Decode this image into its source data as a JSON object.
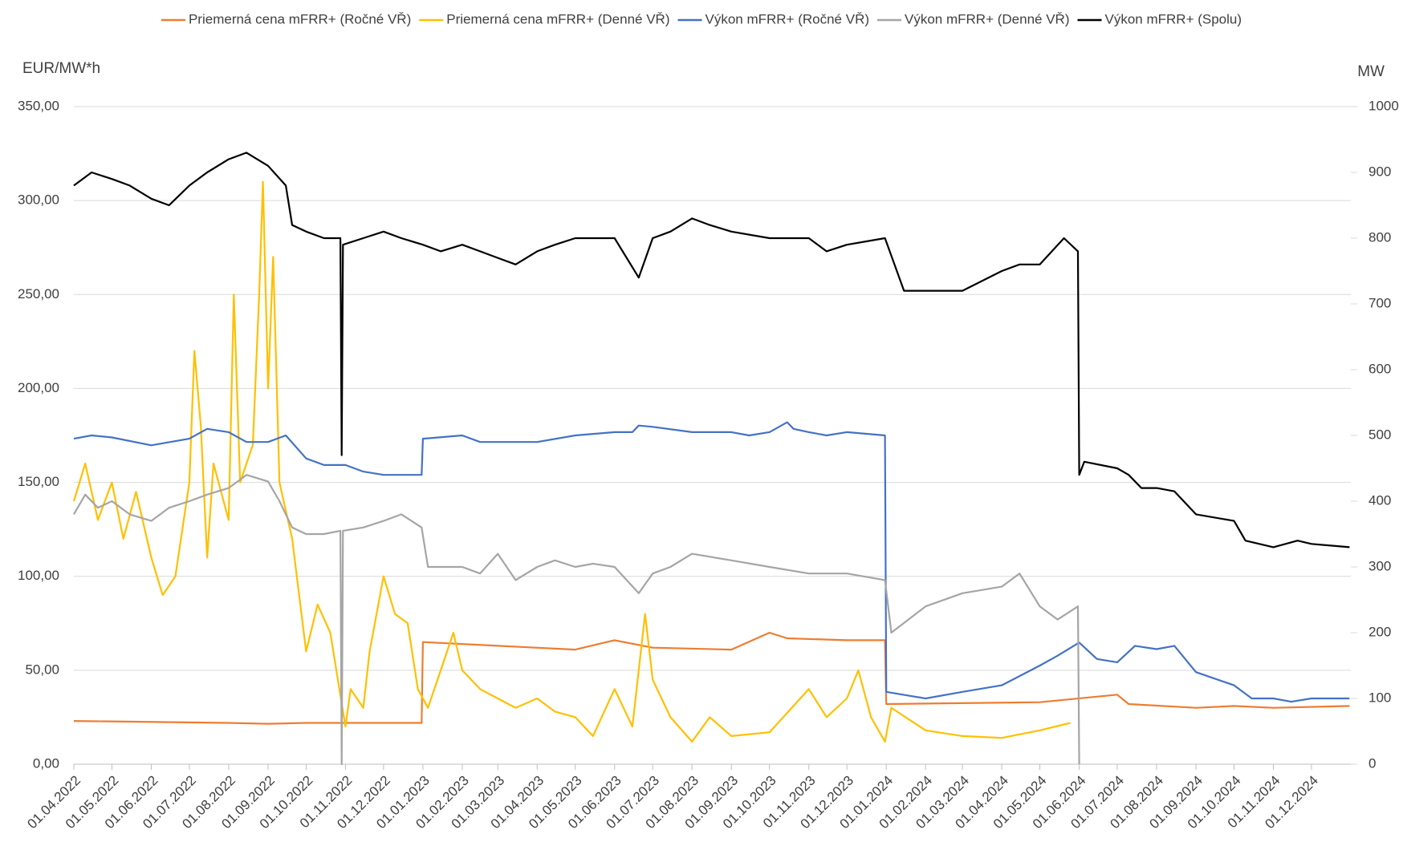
{
  "chart_data": {
    "type": "line",
    "y_label": "EUR/MW*h",
    "y2_label": "MW",
    "xlim": [
      "01.04.2022",
      "01.01.2025"
    ],
    "xticks": [
      "01.04.2022",
      "01.05.2022",
      "01.06.2022",
      "01.07.2022",
      "01.08.2022",
      "01.09.2022",
      "01.10.2022",
      "01.11.2022",
      "01.12.2022",
      "01.01.2023",
      "01.02.2023",
      "01.03.2023",
      "01.04.2023",
      "01.05.2023",
      "01.06.2023",
      "01.07.2023",
      "01.08.2023",
      "01.09.2023",
      "01.10.2023",
      "01.11.2023",
      "01.12.2023",
      "01.01.2024",
      "01.02.2024",
      "01.03.2024",
      "01.04.2024",
      "01.05.2024",
      "01.06.2024",
      "01.07.2024",
      "01.08.2024",
      "01.09.2024",
      "01.10.2024",
      "01.11.2024",
      "01.12.2024"
    ],
    "ylim": [
      0,
      350
    ],
    "yticks": [
      {
        "value": 0,
        "label": "0,00"
      },
      {
        "value": 50,
        "label": "50,00"
      },
      {
        "value": 100,
        "label": "100,00"
      },
      {
        "value": 150,
        "label": "150,00"
      },
      {
        "value": 200,
        "label": "200,00"
      },
      {
        "value": 250,
        "label": "250,00"
      },
      {
        "value": 300,
        "label": "300,00"
      },
      {
        "value": 350,
        "label": "350,00"
      }
    ],
    "y2lim": [
      0,
      1000
    ],
    "y2ticks": [
      0,
      100,
      200,
      300,
      400,
      500,
      600,
      700,
      800,
      900,
      1000
    ],
    "grid": true,
    "legend": "top",
    "series": [
      {
        "name": "Priemerná cena mFRR+ (Ročné VŘ)",
        "color": "#ed7d31",
        "axis": "y",
        "x": [
          "01.04.2022",
          "01.08.2022",
          "01.09.2022",
          "01.10.2022",
          "31.12.2022",
          "01.01.2023",
          "01.05.2023",
          "01.06.2023",
          "01.07.2023",
          "01.09.2023",
          "01.10.2023",
          "15.10.2023",
          "01.12.2023",
          "31.12.2023",
          "01.01.2024",
          "01.05.2024",
          "01.07.2024",
          "10.07.2024",
          "01.09.2024",
          "01.10.2024",
          "01.11.2024",
          "31.12.2024"
        ],
        "values": [
          23,
          22,
          21.5,
          22,
          22,
          65,
          61,
          66,
          62,
          61,
          70,
          67,
          66,
          66,
          32,
          33,
          37,
          32,
          30,
          31,
          30,
          31
        ]
      },
      {
        "name": "Priemerná cena mFRR+ (Denné VŘ)",
        "color": "#ffc000",
        "axis": "y",
        "x": [
          "01.04.2022",
          "10.04.2022",
          "20.04.2022",
          "01.05.2022",
          "10.05.2022",
          "20.05.2022",
          "01.06.2022",
          "10.06.2022",
          "20.06.2022",
          "01.07.2022",
          "05.07.2022",
          "10.07.2022",
          "15.07.2022",
          "20.07.2022",
          "01.08.2022",
          "05.08.2022",
          "10.08.2022",
          "20.08.2022",
          "25.08.2022",
          "28.08.2022",
          "01.09.2022",
          "05.09.2022",
          "10.09.2022",
          "20.09.2022",
          "01.10.2022",
          "10.10.2022",
          "20.10.2022",
          "01.11.2022",
          "05.11.2022",
          "15.11.2022",
          "20.11.2022",
          "01.12.2022",
          "10.12.2022",
          "20.12.2022",
          "28.12.2022",
          "05.01.2023",
          "15.01.2023",
          "25.01.2023",
          "01.02.2023",
          "15.02.2023",
          "01.03.2023",
          "15.03.2023",
          "01.04.2023",
          "15.04.2023",
          "01.05.2023",
          "15.05.2023",
          "01.06.2023",
          "15.06.2023",
          "25.06.2023",
          "01.07.2023",
          "15.07.2023",
          "01.08.2023",
          "15.08.2023",
          "01.09.2023",
          "01.10.2023",
          "01.11.2023",
          "15.11.2023",
          "01.12.2023",
          "10.12.2023",
          "20.12.2023",
          "31.12.2023",
          "05.01.2024",
          "01.02.2024",
          "01.03.2024",
          "01.04.2024",
          "01.05.2024",
          "25.05.2024"
        ],
        "values": [
          140,
          160,
          130,
          150,
          120,
          145,
          110,
          90,
          100,
          150,
          220,
          180,
          110,
          160,
          130,
          250,
          150,
          170,
          250,
          310,
          200,
          270,
          150,
          120,
          60,
          85,
          70,
          20,
          40,
          30,
          60,
          100,
          80,
          75,
          40,
          30,
          50,
          70,
          50,
          40,
          35,
          30,
          35,
          28,
          25,
          15,
          40,
          20,
          80,
          45,
          25,
          12,
          25,
          15,
          17,
          40,
          25,
          35,
          50,
          25,
          12,
          30,
          18,
          15,
          14,
          18,
          22
        ]
      },
      {
        "name": "Výkon mFRR+ (Ročné VŘ)",
        "color": "#4472c4",
        "axis": "y2",
        "x": [
          "01.04.2022",
          "15.04.2022",
          "01.05.2022",
          "01.06.2022",
          "01.07.2022",
          "15.07.2022",
          "01.08.2022",
          "15.08.2022",
          "01.09.2022",
          "15.09.2022",
          "01.10.2022",
          "15.10.2022",
          "01.11.2022",
          "15.11.2022",
          "01.12.2022",
          "15.12.2022",
          "31.12.2022",
          "01.01.2023",
          "01.02.2023",
          "15.02.2023",
          "01.03.2023",
          "01.04.2023",
          "01.05.2023",
          "01.06.2023",
          "15.06.2023",
          "20.06.2023",
          "01.07.2023",
          "01.08.2023",
          "01.09.2023",
          "15.09.2023",
          "01.10.2023",
          "15.10.2023",
          "20.10.2023",
          "01.11.2023",
          "15.11.2023",
          "01.12.2023",
          "31.12.2023",
          "01.01.2024",
          "01.02.2024",
          "01.03.2024",
          "01.04.2024",
          "01.05.2024",
          "15.05.2024",
          "01.06.2024",
          "15.06.2024",
          "01.07.2024",
          "15.07.2024",
          "01.08.2024",
          "15.08.2024",
          "01.09.2024",
          "01.10.2024",
          "15.10.2024",
          "01.11.2024",
          "15.11.2024",
          "01.12.2024",
          "31.12.2024"
        ],
        "values": [
          495,
          500,
          497,
          485,
          495,
          510,
          505,
          490,
          490,
          500,
          465,
          455,
          455,
          445,
          440,
          440,
          440,
          495,
          500,
          490,
          490,
          490,
          500,
          505,
          505,
          515,
          513,
          505,
          505,
          500,
          505,
          520,
          510,
          505,
          500,
          505,
          500,
          110,
          100,
          110,
          120,
          150,
          165,
          185,
          160,
          155,
          180,
          175,
          180,
          140,
          120,
          100,
          100,
          95,
          100,
          100
        ]
      },
      {
        "name": "Výkon mFRR+ (Denné VŘ)",
        "color": "#a5a5a5",
        "axis": "y2",
        "x": [
          "01.04.2022",
          "10.04.2022",
          "20.04.2022",
          "01.05.2022",
          "15.05.2022",
          "01.06.2022",
          "15.06.2022",
          "01.07.2022",
          "15.07.2022",
          "01.08.2022",
          "15.08.2022",
          "01.09.2022",
          "10.09.2022",
          "20.09.2022",
          "01.10.2022",
          "15.10.2022",
          "28.10.2022",
          "29.10.2022",
          "30.10.2022",
          "15.11.2022",
          "01.12.2022",
          "15.12.2022",
          "31.12.2022",
          "05.01.2023",
          "01.02.2023",
          "15.02.2023",
          "01.03.2023",
          "15.03.2023",
          "01.04.2023",
          "15.04.2023",
          "01.05.2023",
          "15.05.2023",
          "01.06.2023",
          "20.06.2023",
          "01.07.2023",
          "15.07.2023",
          "01.08.2023",
          "01.09.2023",
          "01.10.2023",
          "01.11.2023",
          "01.12.2023",
          "31.12.2023",
          "05.01.2024",
          "01.02.2024",
          "01.03.2024",
          "01.04.2024",
          "15.04.2024",
          "01.05.2024",
          "15.05.2024",
          "31.05.2024",
          "01.06.2024"
        ],
        "values": [
          380,
          410,
          390,
          400,
          380,
          370,
          390,
          400,
          410,
          420,
          440,
          430,
          400,
          360,
          350,
          350,
          355,
          0,
          355,
          360,
          370,
          380,
          360,
          300,
          300,
          290,
          320,
          280,
          300,
          310,
          300,
          305,
          300,
          260,
          290,
          300,
          320,
          310,
          300,
          290,
          290,
          280,
          200,
          240,
          260,
          270,
          290,
          240,
          220,
          240,
          0
        ]
      },
      {
        "name": "Výkon mFRR+ (Spolu)",
        "color": "#000000",
        "axis": "y2",
        "x": [
          "01.04.2022",
          "15.04.2022",
          "01.05.2022",
          "15.05.2022",
          "01.06.2022",
          "15.06.2022",
          "01.07.2022",
          "15.07.2022",
          "01.08.2022",
          "15.08.2022",
          "01.09.2022",
          "15.09.2022",
          "20.09.2022",
          "01.10.2022",
          "15.10.2022",
          "28.10.2022",
          "29.10.2022",
          "30.10.2022",
          "15.11.2022",
          "01.12.2022",
          "15.12.2022",
          "01.01.2023",
          "15.01.2023",
          "01.02.2023",
          "15.02.2023",
          "01.03.2023",
          "15.03.2023",
          "01.04.2023",
          "15.04.2023",
          "01.05.2023",
          "01.06.2023",
          "20.06.2023",
          "01.07.2023",
          "15.07.2023",
          "01.08.2023",
          "15.08.2023",
          "01.09.2023",
          "01.10.2023",
          "01.11.2023",
          "15.11.2023",
          "01.12.2023",
          "31.12.2023",
          "15.01.2024",
          "01.02.2024",
          "01.03.2024",
          "01.04.2024",
          "15.04.2024",
          "01.05.2024",
          "20.05.2024",
          "31.05.2024",
          "01.06.2024",
          "05.06.2024",
          "01.07.2024",
          "10.07.2024",
          "20.07.2024",
          "01.08.2024",
          "15.08.2024",
          "01.09.2024",
          "01.10.2024",
          "10.10.2024",
          "01.11.2024",
          "20.11.2024",
          "01.12.2024",
          "31.12.2024"
        ],
        "values": [
          880,
          900,
          890,
          880,
          860,
          850,
          880,
          900,
          920,
          930,
          910,
          880,
          820,
          810,
          800,
          800,
          470,
          790,
          800,
          810,
          800,
          790,
          780,
          790,
          780,
          770,
          760,
          780,
          790,
          800,
          800,
          740,
          800,
          810,
          830,
          820,
          810,
          800,
          800,
          780,
          790,
          800,
          720,
          720,
          720,
          750,
          760,
          760,
          800,
          780,
          440,
          460,
          450,
          440,
          420,
          420,
          415,
          380,
          370,
          340,
          330,
          340,
          335,
          330
        ]
      }
    ]
  }
}
